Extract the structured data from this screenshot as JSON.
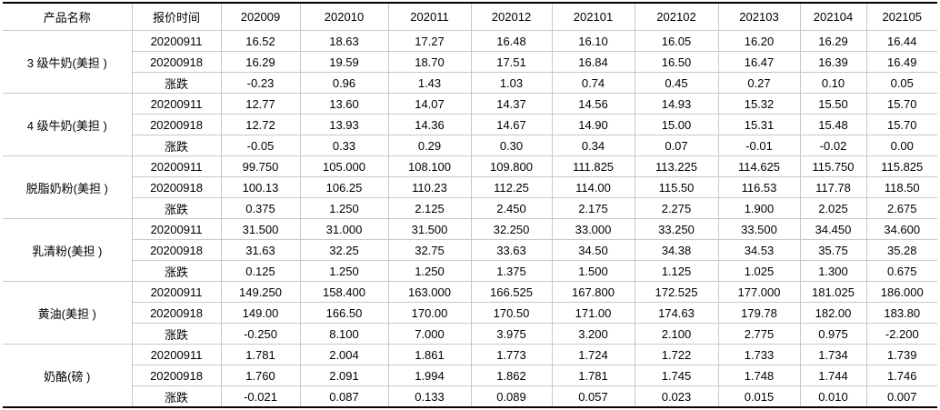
{
  "table": {
    "header": [
      "产品名称",
      "报价时间",
      "202009",
      "202010",
      "202011",
      "202012",
      "202101",
      "202102",
      "202103",
      "202104",
      "202105"
    ],
    "groups": [
      {
        "name": "3 级牛奶(美担 )",
        "rows": [
          {
            "label": "20200911",
            "values": [
              "16.52",
              "18.63",
              "17.27",
              "16.48",
              "16.10",
              "16.05",
              "16.20",
              "16.29",
              "16.44"
            ]
          },
          {
            "label": "20200918",
            "values": [
              "16.29",
              "19.59",
              "18.70",
              "17.51",
              "16.84",
              "16.50",
              "16.47",
              "16.39",
              "16.49"
            ]
          },
          {
            "label": "涨跌",
            "values": [
              "-0.23",
              "0.96",
              "1.43",
              "1.03",
              "0.74",
              "0.45",
              "0.27",
              "0.10",
              "0.05"
            ]
          }
        ]
      },
      {
        "name": "4 级牛奶(美担 )",
        "rows": [
          {
            "label": "20200911",
            "values": [
              "12.77",
              "13.60",
              "14.07",
              "14.37",
              "14.56",
              "14.93",
              "15.32",
              "15.50",
              "15.70"
            ]
          },
          {
            "label": "20200918",
            "values": [
              "12.72",
              "13.93",
              "14.36",
              "14.67",
              "14.90",
              "15.00",
              "15.31",
              "15.48",
              "15.70"
            ]
          },
          {
            "label": "涨跌",
            "values": [
              "-0.05",
              "0.33",
              "0.29",
              "0.30",
              "0.34",
              "0.07",
              "-0.01",
              "-0.02",
              "0.00"
            ]
          }
        ]
      },
      {
        "name": "脱脂奶粉(美担 )",
        "rows": [
          {
            "label": "20200911",
            "values": [
              "99.750",
              "105.000",
              "108.100",
              "109.800",
              "111.825",
              "113.225",
              "114.625",
              "115.750",
              "115.825"
            ]
          },
          {
            "label": "20200918",
            "values": [
              "100.13",
              "106.25",
              "110.23",
              "112.25",
              "114.00",
              "115.50",
              "116.53",
              "117.78",
              "118.50"
            ]
          },
          {
            "label": "涨跌",
            "values": [
              "0.375",
              "1.250",
              "2.125",
              "2.450",
              "2.175",
              "2.275",
              "1.900",
              "2.025",
              "2.675"
            ]
          }
        ]
      },
      {
        "name": "乳清粉(美担 )",
        "rows": [
          {
            "label": "20200911",
            "values": [
              "31.500",
              "31.000",
              "31.500",
              "32.250",
              "33.000",
              "33.250",
              "33.500",
              "34.450",
              "34.600"
            ]
          },
          {
            "label": "20200918",
            "values": [
              "31.63",
              "32.25",
              "32.75",
              "33.63",
              "34.50",
              "34.38",
              "34.53",
              "35.75",
              "35.28"
            ]
          },
          {
            "label": "涨跌",
            "values": [
              "0.125",
              "1.250",
              "1.250",
              "1.375",
              "1.500",
              "1.125",
              "1.025",
              "1.300",
              "0.675"
            ]
          }
        ]
      },
      {
        "name": "黄油(美担 )",
        "rows": [
          {
            "label": "20200911",
            "values": [
              "149.250",
              "158.400",
              "163.000",
              "166.525",
              "167.800",
              "172.525",
              "177.000",
              "181.025",
              "186.000"
            ]
          },
          {
            "label": "20200918",
            "values": [
              "149.00",
              "166.50",
              "170.00",
              "170.50",
              "171.00",
              "174.63",
              "179.78",
              "182.00",
              "183.80"
            ]
          },
          {
            "label": "涨跌",
            "values": [
              "-0.250",
              "8.100",
              "7.000",
              "3.975",
              "3.200",
              "2.100",
              "2.775",
              "0.975",
              "-2.200"
            ]
          }
        ]
      },
      {
        "name": "奶酪(磅 )",
        "rows": [
          {
            "label": "20200911",
            "values": [
              "1.781",
              "2.004",
              "1.861",
              "1.773",
              "1.724",
              "1.722",
              "1.733",
              "1.734",
              "1.739"
            ]
          },
          {
            "label": "20200918",
            "values": [
              "1.760",
              "2.091",
              "1.994",
              "1.862",
              "1.781",
              "1.745",
              "1.748",
              "1.744",
              "1.746"
            ]
          },
          {
            "label": "涨跌",
            "values": [
              "-0.021",
              "0.087",
              "0.133",
              "0.089",
              "0.057",
              "0.023",
              "0.015",
              "0.010",
              "0.007"
            ]
          }
        ]
      }
    ]
  }
}
